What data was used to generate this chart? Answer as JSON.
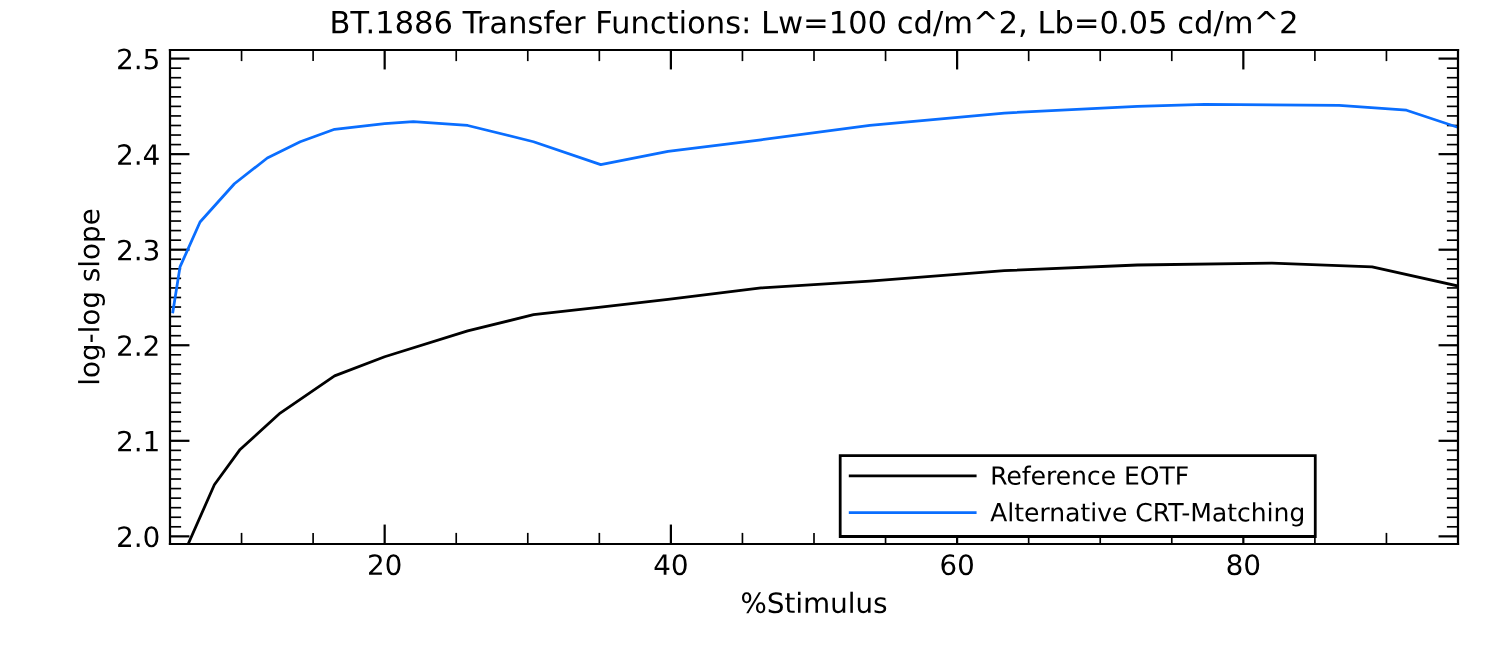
{
  "chart_data": {
    "type": "line",
    "title": "BT.1886 Transfer Functions: Lw=100 cd/m^2, Lb=0.05 cd/m^2",
    "xlabel": "%Stimulus",
    "ylabel": "log-log slope",
    "xlim": [
      5,
      95
    ],
    "ylim": [
      1.992,
      2.509
    ],
    "xticks": [
      20,
      40,
      60,
      80
    ],
    "yticks": [
      {
        "value": 2.0,
        "label": "2.0"
      },
      {
        "value": 2.1,
        "label": "2.1"
      },
      {
        "value": 2.2,
        "label": "2.2"
      },
      {
        "value": 2.3,
        "label": "2.3"
      },
      {
        "value": 2.4,
        "label": "2.4"
      },
      {
        "value": 2.5,
        "label": "2.5"
      }
    ],
    "grid": false,
    "legend": "bottom right",
    "marker": "none",
    "line_style": "solid",
    "series": [
      {
        "name": "Reference EOTF",
        "color": "#000000",
        "x": [
          6.3,
          8.1,
          9.9,
          12.7,
          16.5,
          20,
          25.8,
          30.4,
          35.1,
          39.8,
          46.3,
          53.9,
          63.3,
          72.6,
          82,
          89,
          95
        ],
        "values": [
          1.993,
          2.054,
          2.091,
          2.129,
          2.168,
          2.188,
          2.215,
          2.232,
          2.24,
          2.248,
          2.26,
          2.267,
          2.278,
          2.284,
          2.286,
          2.282,
          2.262
        ]
      },
      {
        "name": "Alternative CRT-Matching",
        "color": "#0a6eff",
        "x": [
          5.2,
          5.7,
          7.1,
          9.5,
          11.8,
          14.1,
          16.5,
          20,
          22,
          25.8,
          30.4,
          35.1,
          39.8,
          46.3,
          53.9,
          63.3,
          72.6,
          77.3,
          86.7,
          91.4,
          95
        ],
        "values": [
          2.235,
          2.282,
          2.329,
          2.369,
          2.396,
          2.413,
          2.426,
          2.432,
          2.434,
          2.43,
          2.413,
          2.389,
          2.403,
          2.415,
          2.43,
          2.443,
          2.45,
          2.452,
          2.451,
          2.446,
          2.428
        ]
      }
    ]
  }
}
